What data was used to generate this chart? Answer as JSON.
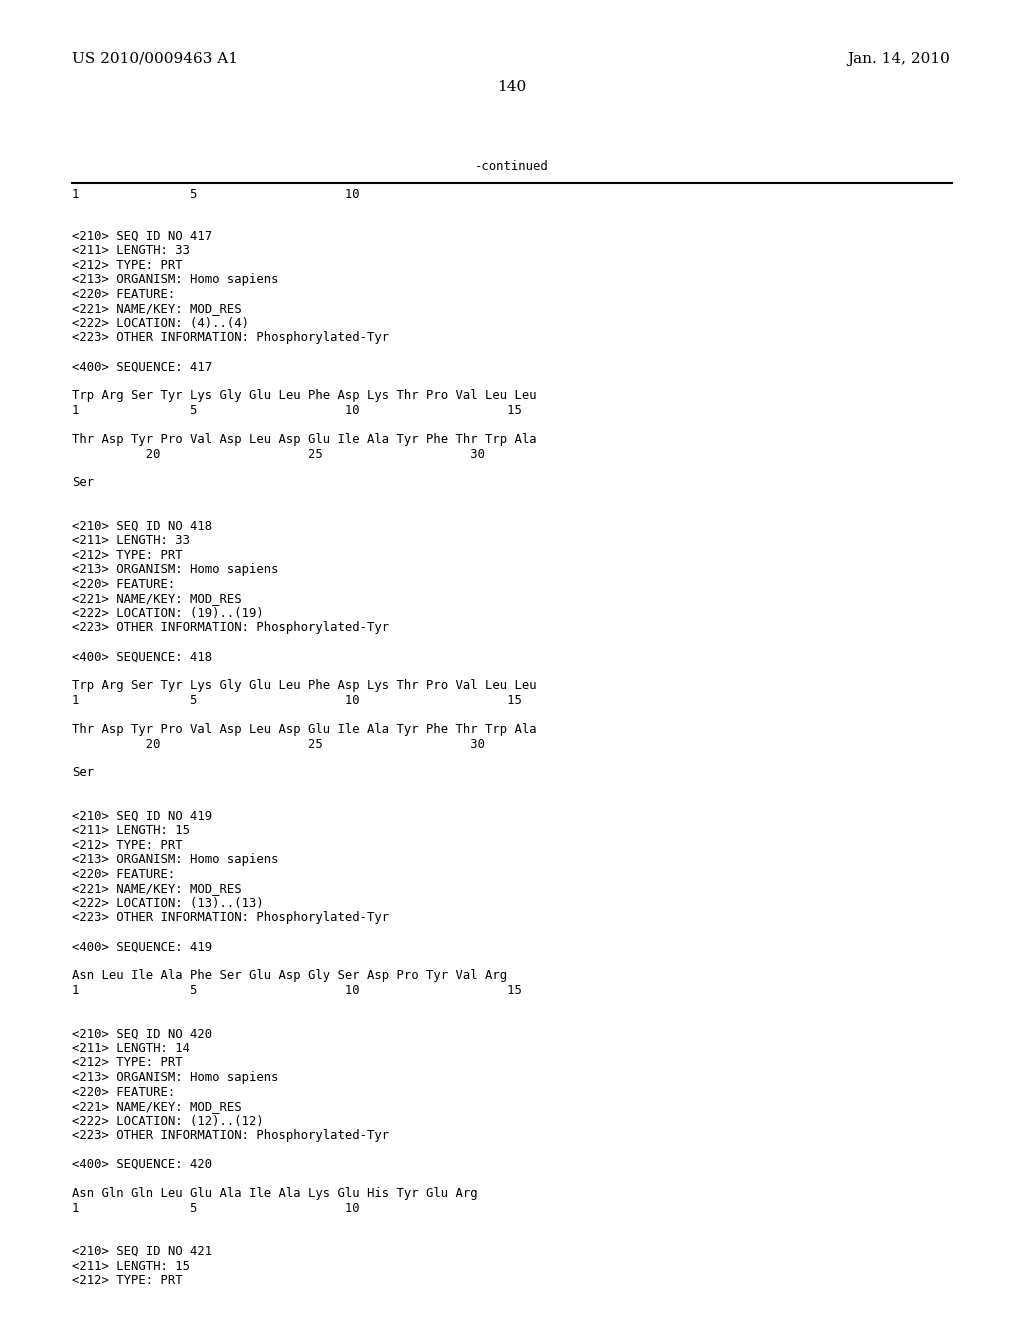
{
  "header_left": "US 2010/0009463 A1",
  "header_right": "Jan. 14, 2010",
  "page_number": "140",
  "continued_label": "-continued",
  "background_color": "#ffffff",
  "text_color": "#000000",
  "font_size_header": 11.0,
  "font_size_body": 8.8,
  "content_lines": [
    "<210> SEQ ID NO 417",
    "<211> LENGTH: 33",
    "<212> TYPE: PRT",
    "<213> ORGANISM: Homo sapiens",
    "<220> FEATURE:",
    "<221> NAME/KEY: MOD_RES",
    "<222> LOCATION: (4)..(4)",
    "<223> OTHER INFORMATION: Phosphorylated-Tyr",
    "",
    "<400> SEQUENCE: 417",
    "",
    "Trp Arg Ser Tyr Lys Gly Glu Leu Phe Asp Lys Thr Pro Val Leu Leu",
    "1               5                    10                    15",
    "",
    "Thr Asp Tyr Pro Val Asp Leu Asp Glu Ile Ala Tyr Phe Thr Trp Ala",
    "          20                    25                    30",
    "",
    "Ser",
    "",
    "",
    "<210> SEQ ID NO 418",
    "<211> LENGTH: 33",
    "<212> TYPE: PRT",
    "<213> ORGANISM: Homo sapiens",
    "<220> FEATURE:",
    "<221> NAME/KEY: MOD_RES",
    "<222> LOCATION: (19)..(19)",
    "<223> OTHER INFORMATION: Phosphorylated-Tyr",
    "",
    "<400> SEQUENCE: 418",
    "",
    "Trp Arg Ser Tyr Lys Gly Glu Leu Phe Asp Lys Thr Pro Val Leu Leu",
    "1               5                    10                    15",
    "",
    "Thr Asp Tyr Pro Val Asp Leu Asp Glu Ile Ala Tyr Phe Thr Trp Ala",
    "          20                    25                    30",
    "",
    "Ser",
    "",
    "",
    "<210> SEQ ID NO 419",
    "<211> LENGTH: 15",
    "<212> TYPE: PRT",
    "<213> ORGANISM: Homo sapiens",
    "<220> FEATURE:",
    "<221> NAME/KEY: MOD_RES",
    "<222> LOCATION: (13)..(13)",
    "<223> OTHER INFORMATION: Phosphorylated-Tyr",
    "",
    "<400> SEQUENCE: 419",
    "",
    "Asn Leu Ile Ala Phe Ser Glu Asp Gly Ser Asp Pro Tyr Val Arg",
    "1               5                    10                    15",
    "",
    "",
    "<210> SEQ ID NO 420",
    "<211> LENGTH: 14",
    "<212> TYPE: PRT",
    "<213> ORGANISM: Homo sapiens",
    "<220> FEATURE:",
    "<221> NAME/KEY: MOD_RES",
    "<222> LOCATION: (12)..(12)",
    "<223> OTHER INFORMATION: Phosphorylated-Tyr",
    "",
    "<400> SEQUENCE: 420",
    "",
    "Asn Gln Gln Leu Glu Ala Ile Ala Lys Glu His Tyr Glu Arg",
    "1               5                    10",
    "",
    "",
    "<210> SEQ ID NO 421",
    "<211> LENGTH: 15",
    "<212> TYPE: PRT"
  ],
  "ruler_line": "1               5                    10"
}
